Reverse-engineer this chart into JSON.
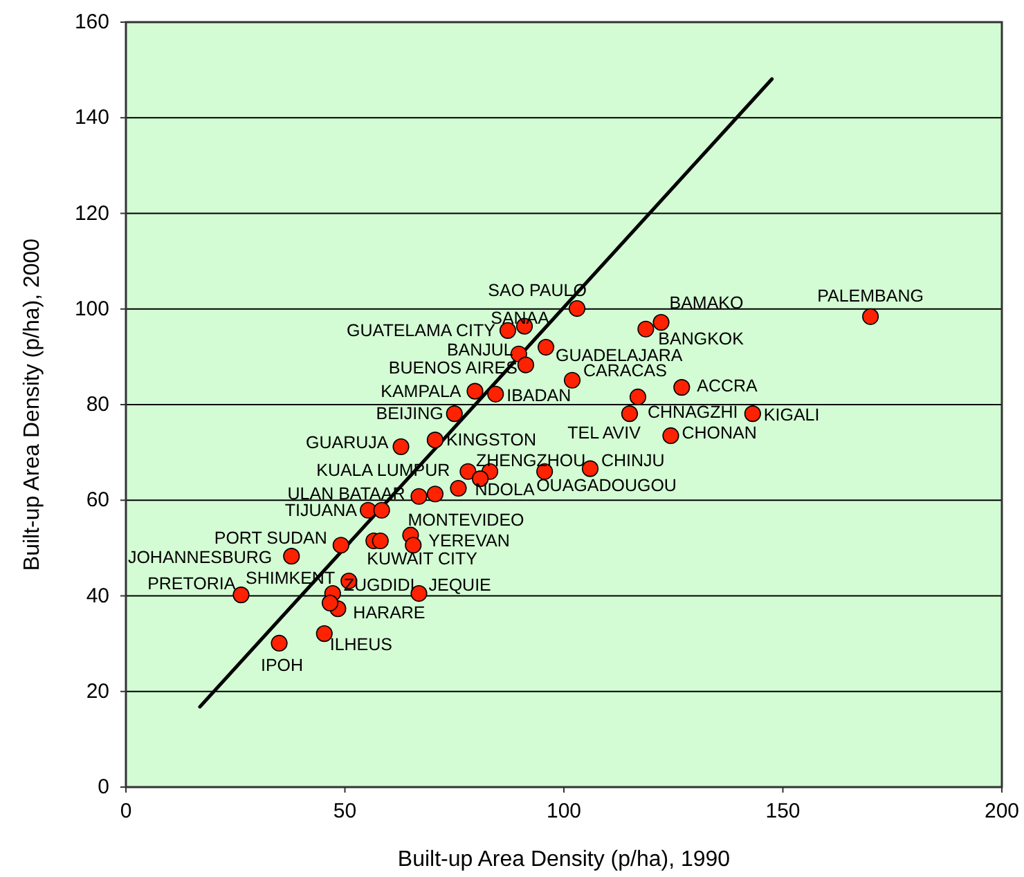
{
  "chart_data": {
    "type": "scatter",
    "xlabel": "Built-up Area Density (p/ha), 1990",
    "ylabel": "Built-up Area Density (p/ha), 2000",
    "xlim": [
      0,
      200
    ],
    "xticks": [
      0,
      50,
      100,
      150,
      200
    ],
    "ylim": [
      0,
      160
    ],
    "yticks": [
      0,
      20,
      40,
      60,
      80,
      100,
      120,
      140,
      160
    ],
    "grid": "y",
    "series": [
      {
        "marker": "circle",
        "color": "#ff2200",
        "x": [
          103,
          91,
          87.2,
          89.7,
          91.3,
          95.9,
          79.7,
          84.4,
          75,
          101.9,
          122.2,
          118.7,
          126.9,
          116.9,
          115,
          143.1,
          124.4,
          170,
          62.8,
          70.6,
          78.1,
          83.1,
          75.9,
          95.6,
          106,
          66.9,
          55.3,
          65,
          65.6,
          56.6,
          49.1,
          37.8,
          26.3,
          50.9,
          47.2,
          66.9,
          48.4,
          45.3,
          35,
          80.9,
          70.6,
          58.4,
          58.1,
          46.6
        ],
        "values": [
          100.1,
          96.4,
          95.5,
          90.6,
          88.3,
          92,
          82.8,
          82.2,
          78.1,
          85.1,
          97.2,
          95.8,
          83.6,
          81.6,
          78.1,
          78.1,
          73.5,
          98.4,
          71.2,
          72.6,
          66,
          66,
          62.5,
          66,
          66.6,
          60.8,
          57.9,
          52.7,
          50.6,
          51.5,
          50.6,
          48.3,
          40.2,
          43.1,
          40.5,
          40.5,
          37.3,
          32.1,
          30.1,
          64.5,
          61.3,
          57.9,
          51.5,
          38.5
        ]
      },
      {
        "type": "line",
        "color": "#000000",
        "x": [
          16.9,
          147.5
        ],
        "values": [
          16.8,
          148.1
        ]
      }
    ],
    "annotations": [
      {
        "text": "SAO PAULO",
        "x": 103,
        "y": 100.1
      },
      {
        "text": "SANAA",
        "x": 91,
        "y": 96.4
      },
      {
        "text": "GUATELAMA CITY",
        "x": 87.2,
        "y": 95.5
      },
      {
        "text": "BANJUL",
        "x": 89.7,
        "y": 90.6
      },
      {
        "text": "BUENOS AIRES",
        "x": 91.3,
        "y": 88.3
      },
      {
        "text": "GUADELAJARA",
        "x": 95.9,
        "y": 92
      },
      {
        "text": "KAMPALA",
        "x": 79.7,
        "y": 82.8
      },
      {
        "text": "IBADAN",
        "x": 84.4,
        "y": 82.2
      },
      {
        "text": "BEIJING",
        "x": 75,
        "y": 78.1
      },
      {
        "text": "CARACAS",
        "x": 101.9,
        "y": 85.1
      },
      {
        "text": "BAMAKO",
        "x": 122.2,
        "y": 97.2
      },
      {
        "text": "BANGKOK",
        "x": 118.7,
        "y": 95.8
      },
      {
        "text": "ACCRA",
        "x": 126.9,
        "y": 83.6
      },
      {
        "text": "CHNAGZHI",
        "x": 116.9,
        "y": 81.6
      },
      {
        "text": "TEL AVIV",
        "x": 115,
        "y": 78.1
      },
      {
        "text": "KIGALI",
        "x": 143.1,
        "y": 78.1
      },
      {
        "text": "CHONAN",
        "x": 124.4,
        "y": 73.5
      },
      {
        "text": "PALEMBANG",
        "x": 170,
        "y": 98.4
      },
      {
        "text": "GUARUJA",
        "x": 62.8,
        "y": 71.2
      },
      {
        "text": "KINGSTON",
        "x": 70.6,
        "y": 72.6
      },
      {
        "text": "KUALA LUMPUR",
        "x": 78.1,
        "y": 66
      },
      {
        "text": "ZHENGZHOU",
        "x": 83.1,
        "y": 66
      },
      {
        "text": "NDOLA",
        "x": 75.9,
        "y": 62.5
      },
      {
        "text": "OUAGADOUGOU",
        "x": 95.6,
        "y": 66
      },
      {
        "text": "CHINJU",
        "x": 106,
        "y": 66.6
      },
      {
        "text": "ULAN BATAAR",
        "x": 66.9,
        "y": 60.8
      },
      {
        "text": "TIJUANA",
        "x": 55.3,
        "y": 57.9
      },
      {
        "text": "MONTEVIDEO",
        "x": 65,
        "y": 52.7
      },
      {
        "text": "YEREVAN",
        "x": 65.6,
        "y": 50.6
      },
      {
        "text": "KUWAIT CITY",
        "x": 56.6,
        "y": 51.5
      },
      {
        "text": "PORT SUDAN",
        "x": 49.1,
        "y": 50.6
      },
      {
        "text": "JOHANNESBURG",
        "x": 37.8,
        "y": 48.3
      },
      {
        "text": "PRETORIA",
        "x": 26.3,
        "y": 40.2
      },
      {
        "text": "SHIMKENT",
        "x": 50.9,
        "y": 43.1
      },
      {
        "text": "ZUGDIDI",
        "x": 47.2,
        "y": 40.5
      },
      {
        "text": "JEQUIE",
        "x": 66.9,
        "y": 40.5
      },
      {
        "text": "HARARE",
        "x": 48.4,
        "y": 37.3
      },
      {
        "text": "ILHEUS",
        "x": 45.3,
        "y": 32.1
      },
      {
        "text": "IPOH",
        "x": 35,
        "y": 30.1
      }
    ]
  }
}
